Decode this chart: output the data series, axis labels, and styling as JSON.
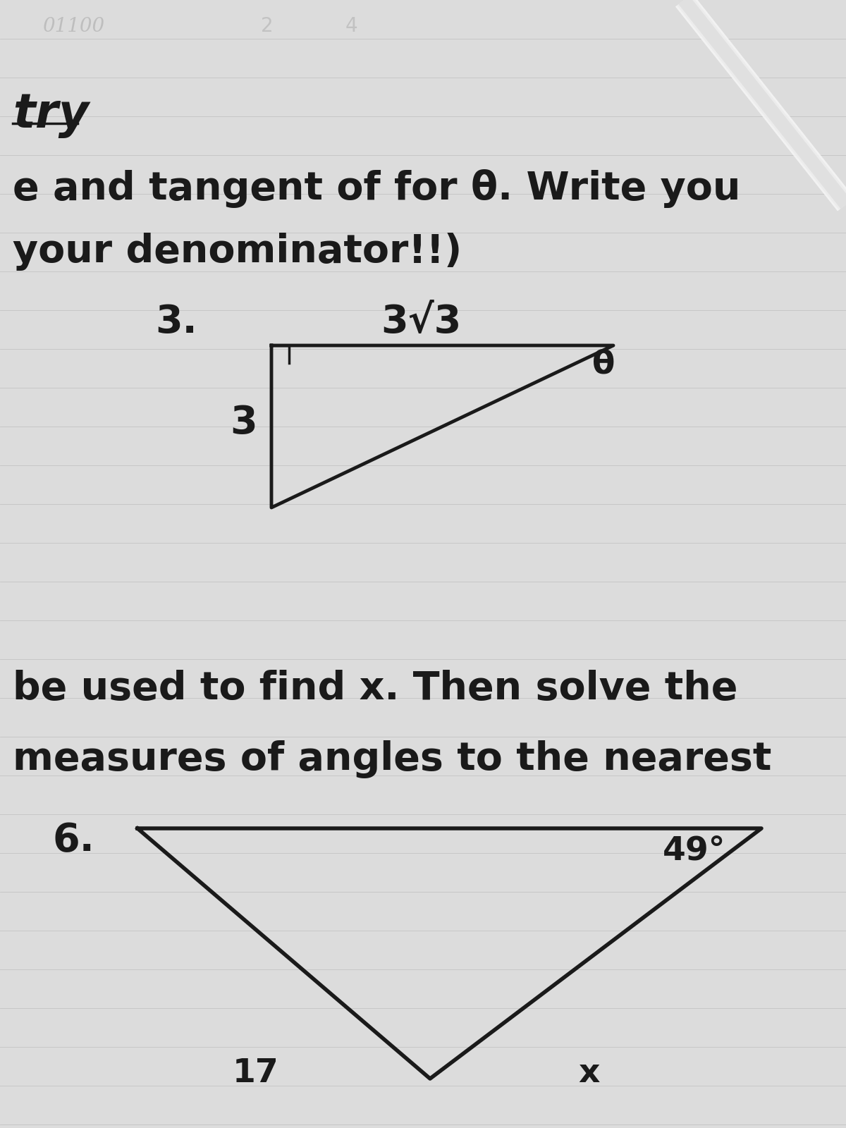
{
  "bg_color": "#c8c8c8",
  "paper_color": "#dcdcdc",
  "text_color": "#1a1a1a",
  "line1_text": "try",
  "line2_text": "e and tangent of for θ. Write you",
  "line3_text": "your denominator!!)",
  "problem_num_1": "3.",
  "triangle1_label_top": "3√3",
  "triangle1_label_side": "3",
  "triangle1_label_angle": "θ",
  "line4_text": "be used to find x. Then solve the",
  "line5_text": "measures of angles to the nearest",
  "problem_num_2": "6.",
  "triangle2_label_angle": "49°",
  "triangle2_label_bottom_left": "17",
  "triangle2_label_bottom_right": "x",
  "font_size_large": 40,
  "font_size_medium": 34,
  "font_size_small": 28,
  "ruled_line_color": "#aaaaaa",
  "pen_color": "#e0e0e0"
}
